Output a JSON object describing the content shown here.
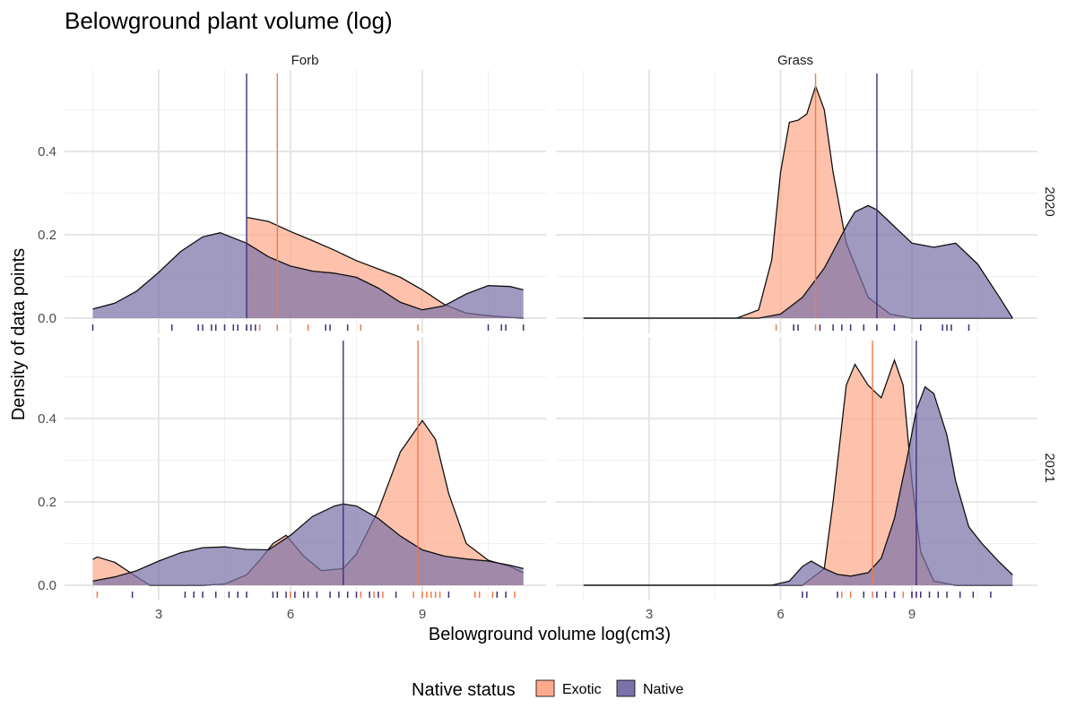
{
  "chart_data": {
    "type": "density",
    "title": "Belowground plant volume (log)",
    "xlabel": "Belowground volume log(cm3)",
    "ylabel": "Density of data points",
    "facet_columns": [
      "Forb",
      "Grass"
    ],
    "facet_rows": [
      "2020",
      "2021"
    ],
    "xlim": [
      1.4,
      11.5
    ],
    "ylim": [
      0,
      0.58
    ],
    "x_ticks": [
      3,
      6,
      9
    ],
    "y_ticks": [
      0.0,
      0.2,
      0.4
    ],
    "y_tick_labels": [
      "0.0",
      "0.2",
      "0.4"
    ],
    "grid": true,
    "legend": {
      "title": "Native status",
      "position": "bottom",
      "entries": [
        {
          "name": "Exotic",
          "fill": "#FDAA8C",
          "line": "#F47A45"
        },
        {
          "name": "Native",
          "fill": "#7B73A8",
          "line": "#3F2F7A"
        }
      ]
    },
    "panels": [
      {
        "column": "Forb",
        "row": "2020",
        "series": [
          {
            "name": "Exotic",
            "mean": 5.7,
            "x": [
              5.0,
              5.5,
              6.0,
              6.5,
              7.0,
              7.5,
              8.0,
              8.5,
              9.0,
              9.5,
              10.0,
              10.5,
              11.0,
              11.3
            ],
            "y": [
              0.242,
              0.232,
              0.208,
              0.186,
              0.163,
              0.138,
              0.118,
              0.098,
              0.068,
              0.033,
              0.012,
              0.006,
              0.002,
              0.0
            ],
            "rug": [
              5.0,
              5.3,
              5.7,
              6.4,
              7.6,
              8.9
            ]
          },
          {
            "name": "Native",
            "mean": 5.0,
            "x": [
              1.5,
              2.0,
              2.5,
              3.0,
              3.5,
              4.0,
              4.4,
              5.0,
              5.5,
              6.0,
              6.5,
              7.0,
              7.5,
              8.0,
              8.5,
              9.0,
              9.5,
              10.0,
              10.5,
              11.0,
              11.3
            ],
            "y": [
              0.022,
              0.036,
              0.065,
              0.11,
              0.16,
              0.195,
              0.205,
              0.18,
              0.147,
              0.125,
              0.113,
              0.108,
              0.098,
              0.072,
              0.038,
              0.02,
              0.03,
              0.058,
              0.078,
              0.076,
              0.068
            ],
            "rug": [
              1.5,
              3.3,
              3.9,
              4.0,
              4.2,
              4.3,
              4.5,
              4.7,
              4.8,
              5.0,
              5.1,
              5.2,
              6.8,
              6.9,
              7.3,
              10.5,
              10.8,
              10.9,
              11.3
            ]
          }
        ]
      },
      {
        "column": "Grass",
        "row": "2020",
        "series": [
          {
            "name": "Exotic",
            "mean": 6.8,
            "x": [
              1.5,
              5.0,
              5.5,
              5.8,
              6.0,
              6.2,
              6.4,
              6.6,
              6.8,
              7.0,
              7.2,
              7.5,
              8.0,
              8.5,
              9.0,
              10.0,
              11.3
            ],
            "y": [
              0.0,
              0.0,
              0.02,
              0.14,
              0.35,
              0.47,
              0.475,
              0.49,
              0.557,
              0.5,
              0.35,
              0.18,
              0.05,
              0.01,
              0.0,
              0.0,
              0.0
            ],
            "rug": [
              5.9,
              6.3,
              6.8
            ]
          },
          {
            "name": "Native",
            "mean": 8.2,
            "x": [
              1.5,
              5.5,
              6.0,
              6.5,
              7.0,
              7.5,
              7.7,
              8.0,
              8.2,
              8.5,
              9.0,
              9.5,
              10.0,
              10.5,
              11.0,
              11.3
            ],
            "y": [
              0.0,
              0.0,
              0.01,
              0.05,
              0.12,
              0.22,
              0.255,
              0.27,
              0.26,
              0.23,
              0.18,
              0.17,
              0.18,
              0.13,
              0.05,
              0.0
            ],
            "rug": [
              6.3,
              6.4,
              6.9,
              7.2,
              7.4,
              7.6,
              7.9,
              8.2,
              8.6,
              9.2,
              9.7,
              9.8,
              9.9,
              10.3
            ]
          }
        ]
      },
      {
        "column": "Forb",
        "row": "2021",
        "series": [
          {
            "name": "Exotic",
            "mean": 8.9,
            "x": [
              1.5,
              1.6,
              2.0,
              2.5,
              2.8,
              3.0,
              3.5,
              4.0,
              4.5,
              5.0,
              5.3,
              5.6,
              5.9,
              6.3,
              6.7,
              7.2,
              7.5,
              8.0,
              8.5,
              9.0,
              9.3,
              9.6,
              10.0,
              10.5,
              11.0,
              11.3
            ],
            "y": [
              0.062,
              0.068,
              0.055,
              0.02,
              0.0,
              0.0,
              0.0,
              0.0,
              0.003,
              0.025,
              0.06,
              0.1,
              0.12,
              0.07,
              0.035,
              0.04,
              0.075,
              0.18,
              0.32,
              0.395,
              0.35,
              0.22,
              0.1,
              0.06,
              0.045,
              0.03
            ],
            "rug": [
              1.6,
              5.7,
              6.0,
              7.6,
              7.9,
              8.1,
              8.8,
              9.0,
              9.1,
              9.2,
              9.3,
              9.4,
              10.2,
              10.3,
              10.6,
              11.1
            ]
          },
          {
            "name": "Native",
            "mean": 7.2,
            "x": [
              1.5,
              2.0,
              2.5,
              3.0,
              3.5,
              4.0,
              4.5,
              5.0,
              5.5,
              6.0,
              6.5,
              7.0,
              7.2,
              7.5,
              8.0,
              8.5,
              9.0,
              9.5,
              10.0,
              10.5,
              11.0,
              11.3
            ],
            "y": [
              0.01,
              0.02,
              0.035,
              0.058,
              0.078,
              0.09,
              0.092,
              0.086,
              0.085,
              0.12,
              0.165,
              0.19,
              0.195,
              0.19,
              0.16,
              0.118,
              0.085,
              0.07,
              0.063,
              0.058,
              0.048,
              0.04
            ],
            "rug": [
              2.4,
              3.6,
              3.8,
              4.0,
              4.3,
              4.6,
              4.8,
              5.0,
              5.6,
              5.7,
              5.9,
              6.1,
              6.3,
              6.4,
              6.6,
              6.9,
              7.1,
              7.3,
              7.5,
              7.8,
              8.0,
              8.4,
              9.6,
              10.7,
              10.9
            ]
          }
        ]
      },
      {
        "column": "Grass",
        "row": "2021",
        "series": [
          {
            "name": "Exotic",
            "mean": 8.1,
            "x": [
              1.5,
              6.0,
              6.5,
              7.0,
              7.2,
              7.5,
              7.7,
              8.0,
              8.3,
              8.6,
              8.8,
              9.0,
              9.2,
              9.5,
              10.0,
              11.3
            ],
            "y": [
              0.0,
              0.0,
              0.0,
              0.04,
              0.2,
              0.48,
              0.53,
              0.48,
              0.45,
              0.54,
              0.48,
              0.25,
              0.08,
              0.01,
              0.0,
              0.0
            ],
            "rug": [
              7.4,
              7.6,
              7.9,
              8.1,
              8.6,
              8.8,
              9.0,
              9.1
            ]
          },
          {
            "name": "Native",
            "mean": 9.1,
            "x": [
              1.5,
              5.8,
              6.2,
              6.5,
              6.7,
              7.0,
              7.3,
              7.6,
              8.0,
              8.3,
              8.6,
              8.9,
              9.1,
              9.3,
              9.5,
              9.8,
              10.0,
              10.3,
              10.6,
              11.0,
              11.3
            ],
            "y": [
              0.0,
              0.0,
              0.01,
              0.045,
              0.058,
              0.04,
              0.026,
              0.022,
              0.03,
              0.065,
              0.16,
              0.31,
              0.42,
              0.476,
              0.46,
              0.36,
              0.25,
              0.14,
              0.1,
              0.055,
              0.025
            ],
            "rug": [
              6.5,
              6.6,
              7.3,
              7.9,
              8.2,
              8.4,
              8.6,
              9.0,
              9.1,
              9.2,
              9.4,
              9.6,
              9.8,
              10.1,
              10.4,
              10.8
            ]
          }
        ]
      }
    ]
  }
}
